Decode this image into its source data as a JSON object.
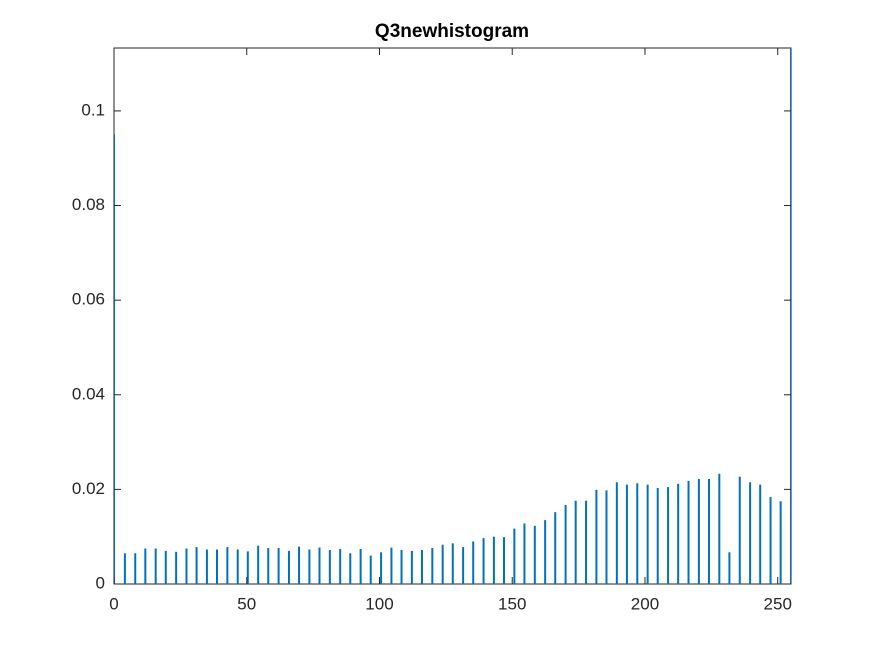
{
  "chart_data": {
    "type": "bar",
    "title": "Q3newhistogram",
    "color": "#0072bd",
    "x": [
      0,
      4.1,
      8.0,
      11.8,
      15.7,
      19.5,
      23.4,
      27.3,
      31.1,
      35.0,
      38.8,
      42.7,
      46.6,
      50.4,
      54.3,
      58.1,
      62.0,
      65.9,
      69.7,
      73.6,
      77.4,
      81.3,
      85.2,
      89.0,
      92.9,
      96.7,
      100.6,
      104.5,
      108.3,
      112.2,
      116.0,
      119.9,
      123.8,
      127.6,
      131.5,
      135.3,
      139.2,
      143.1,
      146.9,
      150.8,
      154.6,
      158.5,
      162.4,
      166.2,
      170.1,
      173.9,
      177.8,
      181.7,
      185.5,
      189.4,
      193.2,
      197.1,
      201.0,
      204.8,
      208.7,
      212.5,
      216.4,
      220.3,
      224.1,
      228.0,
      231.8,
      235.7,
      239.6,
      243.4,
      247.3,
      251.1,
      255
    ],
    "values": [
      0.095,
      0.0065,
      0.0065,
      0.0075,
      0.0075,
      0.007,
      0.0068,
      0.0075,
      0.0078,
      0.0073,
      0.0073,
      0.0078,
      0.0073,
      0.0069,
      0.0081,
      0.0076,
      0.0076,
      0.007,
      0.0079,
      0.0073,
      0.0077,
      0.0072,
      0.0074,
      0.0065,
      0.0074,
      0.006,
      0.0067,
      0.0077,
      0.0072,
      0.007,
      0.0072,
      0.0076,
      0.0083,
      0.0086,
      0.0078,
      0.009,
      0.0097,
      0.01,
      0.0099,
      0.0117,
      0.0128,
      0.0123,
      0.0135,
      0.0152,
      0.0167,
      0.0176,
      0.0176,
      0.0199,
      0.0198,
      0.0215,
      0.021,
      0.0213,
      0.021,
      0.0203,
      0.0205,
      0.0212,
      0.0218,
      0.0222,
      0.0222,
      0.0233,
      0.0067,
      0.0227,
      0.0215,
      0.021,
      0.0184,
      0.0175,
      0.115
    ],
    "xlim": [
      0,
      255
    ],
    "xticks": [
      0,
      50,
      100,
      150,
      200,
      250
    ],
    "ylim": [
      0,
      0.1133
    ],
    "yticks": [
      0,
      0.02,
      0.04,
      0.06,
      0.08,
      0.1
    ],
    "grid": false
  }
}
